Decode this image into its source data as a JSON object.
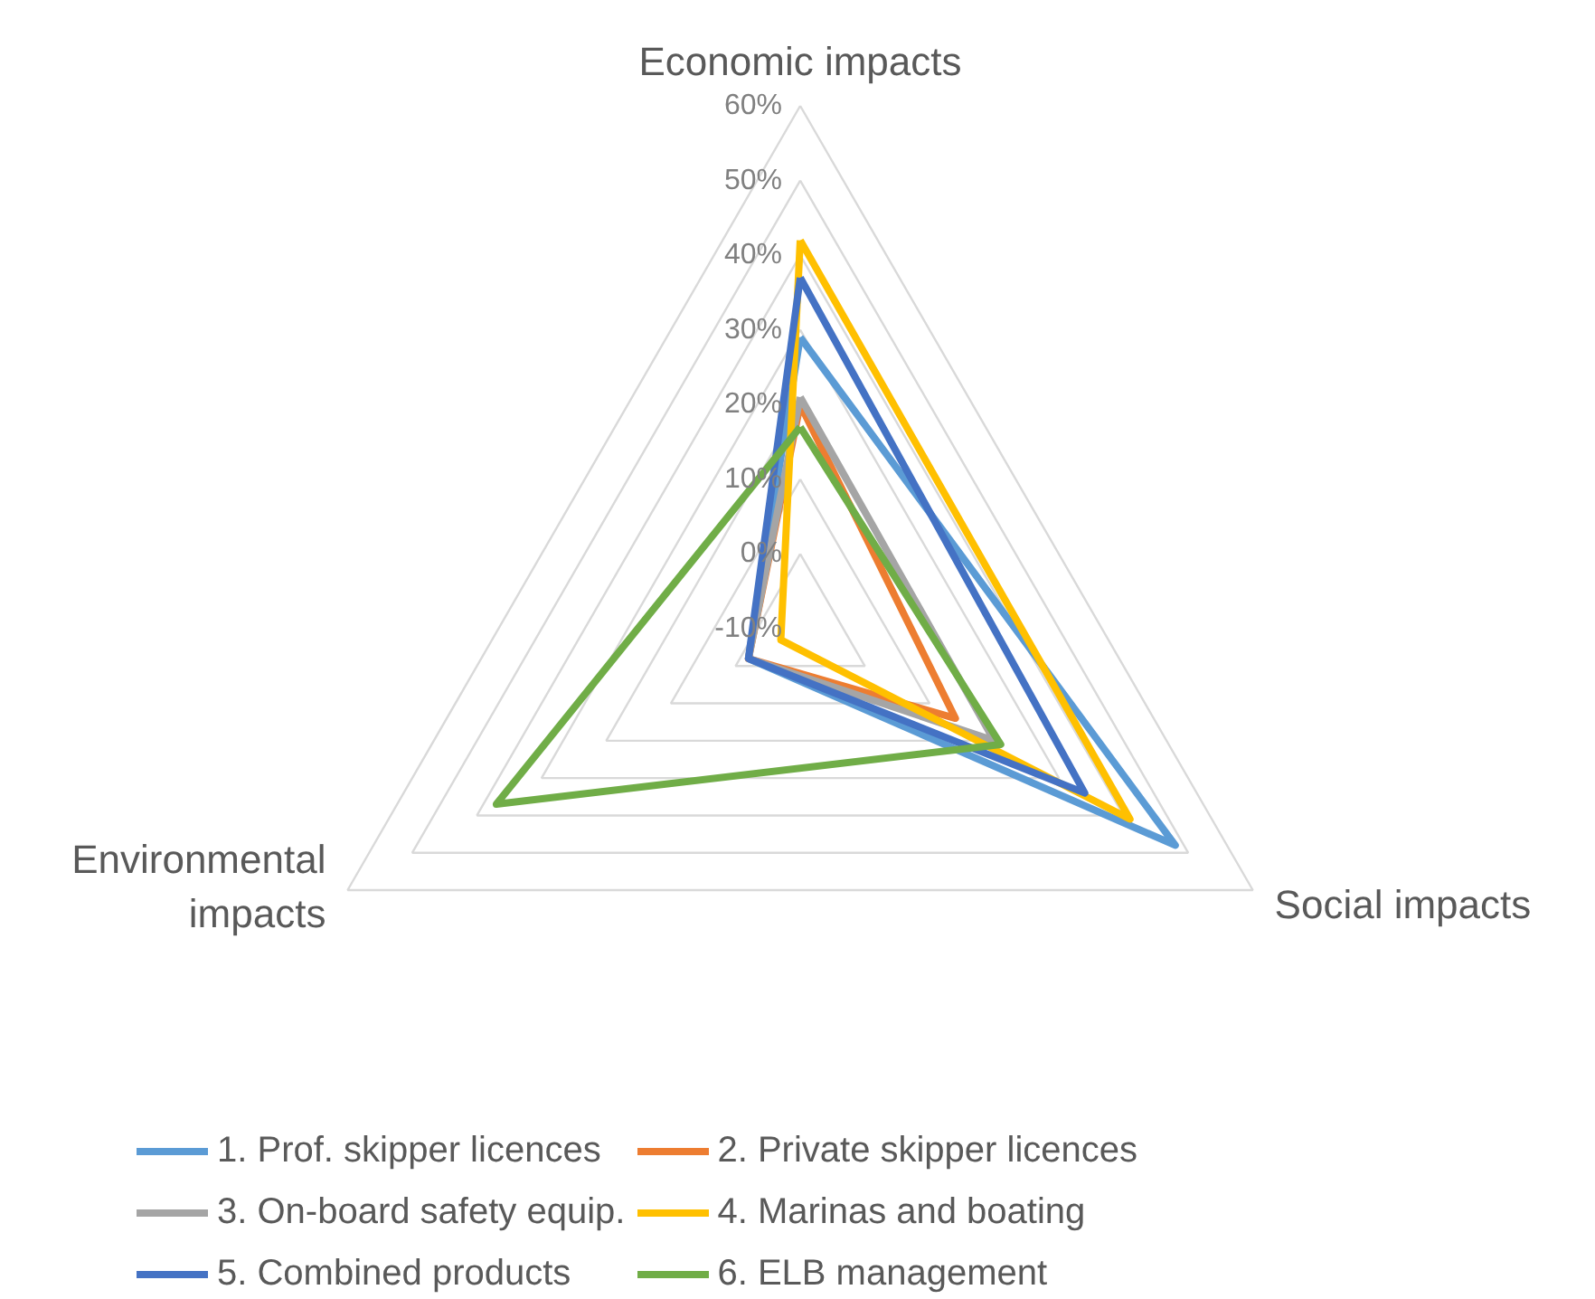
{
  "chart_data": {
    "type": "radar",
    "categories": [
      "Economic impacts",
      "Social impacts",
      "Environmental impacts"
    ],
    "ylim": [
      -10,
      60
    ],
    "yticks": [
      {
        "value": -10,
        "label": "-10%"
      },
      {
        "value": 0,
        "label": "0%"
      },
      {
        "value": 10,
        "label": "10%"
      },
      {
        "value": 20,
        "label": "20%"
      },
      {
        "value": 30,
        "label": "30%"
      },
      {
        "value": 40,
        "label": "40%"
      },
      {
        "value": 50,
        "label": "50%"
      },
      {
        "value": 60,
        "label": "60%"
      }
    ],
    "grid": true,
    "legend": "bottom",
    "marker": "none",
    "line_style": "solid",
    "series": [
      {
        "name": "1. Prof. skipper licences",
        "color": "#5b9bd5",
        "values": [
          29,
          48,
          -2
        ]
      },
      {
        "name": "2. Private skipper licences",
        "color": "#ed7d31",
        "values": [
          20,
          14,
          -2
        ]
      },
      {
        "name": "3. On-board safety equip.",
        "color": "#a5a5a5",
        "values": [
          21,
          20,
          -2
        ]
      },
      {
        "name": "4. Marinas and boating",
        "color": "#ffc000",
        "values": [
          42,
          41,
          -7
        ]
      },
      {
        "name": "5. Combined products",
        "color": "#4472c4",
        "values": [
          37,
          34,
          -2
        ]
      },
      {
        "name": "6. ELB management",
        "color": "#70ad47",
        "values": [
          17,
          21,
          37
        ]
      }
    ]
  }
}
